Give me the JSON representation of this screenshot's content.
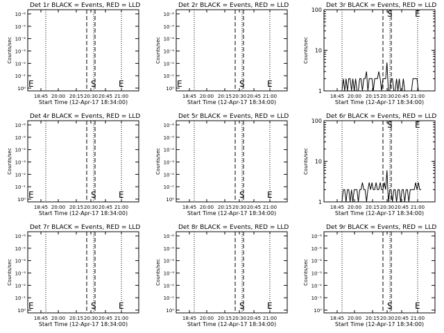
{
  "chart_data": [
    {
      "type": "line",
      "title": "Det 1r BLACK = Events, RED = LLD",
      "xlabel": "Start Time (12-Apr-17 18:34:00)",
      "ylabel": "Counts/sec",
      "scale": "log",
      "y_ticks": [
        "10⁰",
        "10⁻¹",
        "10⁻²",
        "10⁻³",
        "10⁻⁴",
        "10⁻⁵",
        "10⁻⁶"
      ],
      "x_ticks": [
        "18:45",
        "20:00",
        "20:15",
        "20:30",
        "20:45",
        "21:00"
      ],
      "markers": [
        "E",
        "S",
        "E"
      ],
      "series": []
    },
    {
      "type": "line",
      "title": "Det 2r BLACK = Events, RED = LLD",
      "xlabel": "Start Time (12-Apr-17 18:34:00)",
      "ylabel": "Counts/sec",
      "scale": "log",
      "y_ticks": [
        "10⁰",
        "10⁻¹",
        "10⁻²",
        "10⁻³",
        "10⁻⁴",
        "10⁻⁵",
        "10⁻⁶"
      ],
      "x_ticks": [
        "18:45",
        "20:00",
        "20:15",
        "20:30",
        "20:45",
        "21:00"
      ],
      "markers": [
        "E",
        "S",
        "E"
      ],
      "series": []
    },
    {
      "type": "line",
      "title": "Det 3r BLACK = Events, RED = LLD",
      "xlabel": "Start Time (12-Apr-17 18:34:00)",
      "ylabel": "Counts/sec",
      "scale": "log",
      "y_ticks": [
        "100",
        "10",
        "1"
      ],
      "x_ticks": [
        "18:45",
        "20:00",
        "20:15",
        "20:30",
        "20:45",
        "21:00"
      ],
      "markers": [
        "S",
        "E"
      ],
      "series": [
        {
          "values": [
            1,
            1,
            1,
            1,
            2,
            1,
            2,
            1,
            2,
            2,
            1,
            2,
            1,
            2,
            1,
            1,
            2,
            2,
            1,
            2,
            2,
            3,
            1,
            2,
            2,
            2,
            1,
            2,
            2,
            2,
            3,
            2,
            1,
            2,
            2,
            2,
            5,
            1,
            1,
            2,
            2,
            1,
            1,
            2,
            1,
            2,
            1,
            1,
            2,
            1,
            1,
            1,
            1,
            1,
            1,
            2,
            2,
            2,
            2,
            1,
            1,
            1
          ]
        }
      ]
    },
    {
      "type": "line",
      "title": "Det 4r BLACK = Events, RED = LLD",
      "xlabel": "Start Time (12-Apr-17 18:34:00)",
      "ylabel": "Counts/sec",
      "scale": "log",
      "y_ticks": [
        "10⁰",
        "10⁻¹",
        "10⁻²",
        "10⁻³",
        "10⁻⁴",
        "10⁻⁵",
        "10⁻⁶"
      ],
      "x_ticks": [
        "18:45",
        "20:00",
        "20:15",
        "20:30",
        "20:45",
        "21:00"
      ],
      "markers": [
        "E",
        "S",
        "E"
      ],
      "series": []
    },
    {
      "type": "line",
      "title": "Det 5r BLACK = Events, RED = LLD",
      "xlabel": "Start Time (12-Apr-17 18:34:00)",
      "ylabel": "Counts/sec",
      "scale": "log",
      "y_ticks": [
        "10⁰",
        "10⁻¹",
        "10⁻²",
        "10⁻³",
        "10⁻⁴",
        "10⁻⁵",
        "10⁻⁶"
      ],
      "x_ticks": [
        "18:45",
        "20:00",
        "20:15",
        "20:30",
        "20:45",
        "21:00"
      ],
      "markers": [
        "S",
        "E"
      ],
      "series": []
    },
    {
      "type": "line",
      "title": "Det 6r BLACK = Events, RED = LLD",
      "xlabel": "Start Time (12-Apr-17 18:34:00)",
      "ylabel": "Counts/sec",
      "scale": "log",
      "y_ticks": [
        "100",
        "10",
        "1"
      ],
      "x_ticks": [
        "18:45",
        "20:00",
        "20:15",
        "20:30",
        "20:45",
        "21:00"
      ],
      "markers": [
        "S",
        "E"
      ],
      "series": [
        {
          "values": [
            1,
            1,
            1,
            1,
            2,
            2,
            1,
            2,
            2,
            1,
            2,
            1,
            2,
            2,
            2,
            1,
            2,
            2,
            3,
            2,
            2,
            1,
            2,
            3,
            2,
            3,
            2,
            2,
            3,
            2,
            2,
            3,
            2,
            2,
            3,
            2,
            6,
            1,
            2,
            2,
            1,
            2,
            2,
            1,
            2,
            2,
            1,
            2,
            2,
            1,
            2,
            2,
            1,
            2,
            2,
            2,
            2,
            3,
            2,
            3,
            2,
            2
          ]
        }
      ]
    },
    {
      "type": "line",
      "title": "Det 7r BLACK = Events, RED = LLD",
      "xlabel": "Start Time (12-Apr-17 18:34:00)",
      "ylabel": "Counts/sec",
      "scale": "log",
      "y_ticks": [
        "10⁰",
        "10⁻¹",
        "10⁻²",
        "10⁻³",
        "10⁻⁴",
        "10⁻⁵",
        "10⁻⁶"
      ],
      "x_ticks": [
        "18:45",
        "20:00",
        "20:15",
        "20:30",
        "20:45",
        "21:00"
      ],
      "markers": [
        "E",
        "S",
        "E"
      ],
      "series": []
    },
    {
      "type": "line",
      "title": "Det 8r BLACK = Events, RED = LLD",
      "xlabel": "Start Time (12-Apr-17 18:34:00)",
      "ylabel": "Counts/sec",
      "scale": "log",
      "y_ticks": [
        "10⁰",
        "10⁻¹",
        "10⁻²",
        "10⁻³",
        "10⁻⁴",
        "10⁻⁵",
        "10⁻⁶"
      ],
      "x_ticks": [
        "18:45",
        "20:00",
        "20:15",
        "20:30",
        "20:45",
        "21:00"
      ],
      "markers": [
        "S",
        "E"
      ],
      "series": []
    },
    {
      "type": "line",
      "title": "Det 9r BLACK = Events, RED = LLD",
      "xlabel": "Start Time (12-Apr-17 18:34:00)",
      "ylabel": "Counts/sec",
      "scale": "log",
      "y_ticks": [
        "10⁰",
        "10⁻¹",
        "10⁻²",
        "10⁻³",
        "10⁻⁴",
        "10⁻⁵",
        "10⁻⁶"
      ],
      "x_ticks": [
        "18:45",
        "20:00",
        "20:15",
        "20:30",
        "20:45",
        "21:00"
      ],
      "markers": [
        "S",
        "E"
      ],
      "series": []
    }
  ]
}
